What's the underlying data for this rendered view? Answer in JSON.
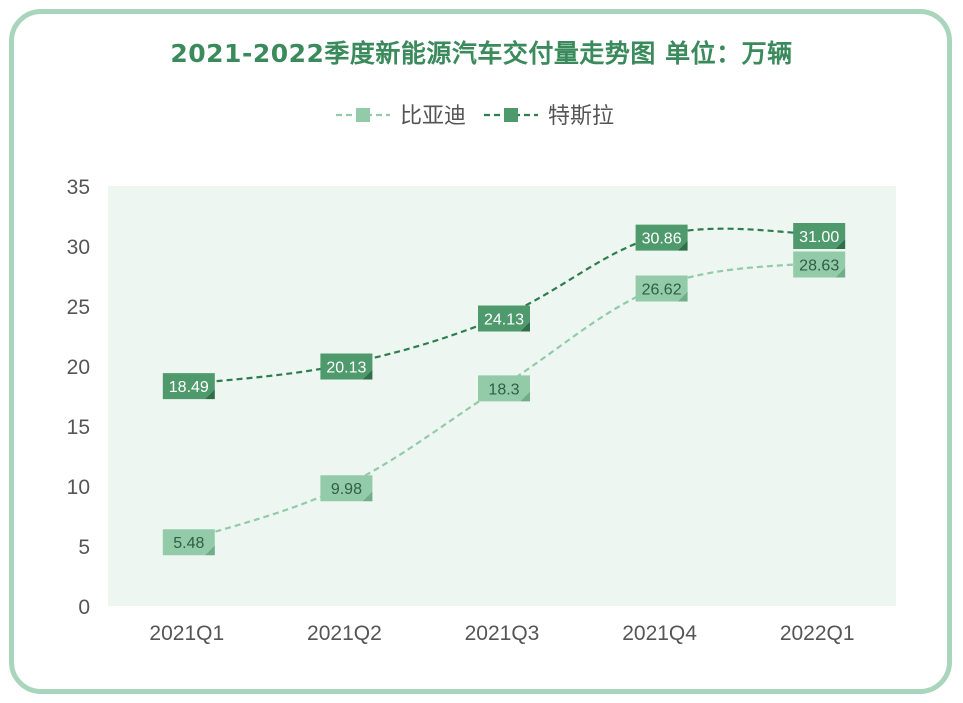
{
  "title": "2021-2022季度新能源汽车交付量走势图 单位：万辆",
  "colors": {
    "frame": "#a9d5bd",
    "title": "#3a8a5c",
    "plot_bg": "#eef6f1",
    "byd": "#93cba8",
    "tesla": "#2e7d4f"
  },
  "chart_data": {
    "type": "line",
    "title": "2021-2022季度新能源汽车交付量走势图 单位：万辆",
    "categories": [
      "2021Q1",
      "2021Q2",
      "2021Q3",
      "2021Q4",
      "2022Q1"
    ],
    "ylim": [
      0,
      35
    ],
    "yticks": [
      0,
      5,
      10,
      15,
      20,
      25,
      30,
      35
    ],
    "legend_position": "top-center",
    "series": [
      {
        "name": "比亚迪",
        "values": [
          5.48,
          9.98,
          18.3,
          26.62,
          28.63
        ],
        "labels": [
          "5.48",
          "9.98",
          "18.3",
          "26.62",
          "28.63"
        ]
      },
      {
        "name": "特斯拉",
        "values": [
          18.49,
          20.13,
          24.13,
          30.86,
          31.0
        ],
        "labels": [
          "18.49",
          "20.13",
          "24.13",
          "30.86",
          "31.00"
        ]
      }
    ]
  }
}
